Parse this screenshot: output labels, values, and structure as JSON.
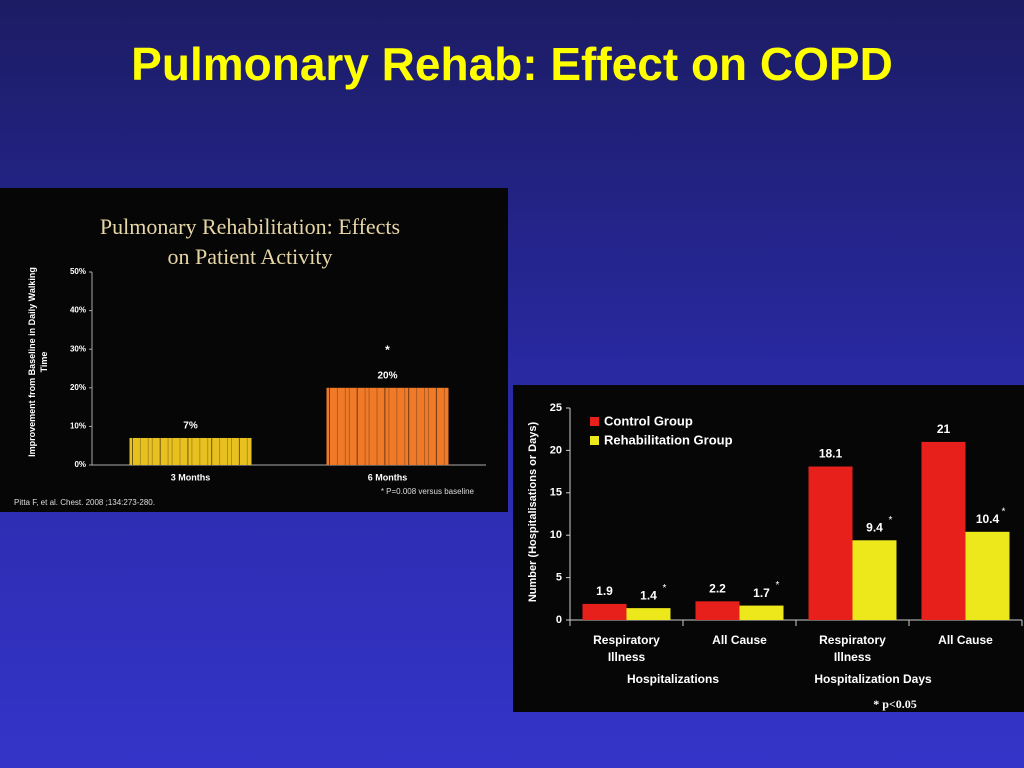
{
  "title": "Pulmonary Rehab: Effect on COPD",
  "chart_data": [
    {
      "type": "bar",
      "title": "Pulmonary Rehabilitation: Effects on Patient Activity",
      "y_label": "Improvement from Baseline in Daily Walking Time",
      "categories": [
        "3 Months",
        "6 Months"
      ],
      "values": [
        7,
        20
      ],
      "value_labels": [
        "7%",
        "20%"
      ],
      "colors": [
        "#e8c020",
        "#f07a28"
      ],
      "ylim": [
        0,
        50
      ],
      "yticks": [
        {
          "value": 0,
          "label": "0%"
        },
        {
          "value": 10,
          "label": "10%"
        },
        {
          "value": 20,
          "label": "20%"
        },
        {
          "value": 30,
          "label": "30%"
        },
        {
          "value": 40,
          "label": "40%"
        },
        {
          "value": 50,
          "label": "50%"
        }
      ],
      "annotation": "*",
      "note": "* P=0.008 versus baseline",
      "source": "Pitta F,  et al. Chest. 2008 ;134:273-280."
    },
    {
      "type": "grouped_bar",
      "y_label": "Number (Hospitalisations or Days)",
      "categories": [
        "Respiratory Illness",
        "All Cause",
        "Respiratory Illness",
        "All Cause"
      ],
      "groups": [
        "Hospitalizations",
        "Hospitalization Days"
      ],
      "series": [
        {
          "name": "Control Group",
          "color": "#e8201c",
          "values": [
            1.9,
            2.2,
            18.1,
            21
          ]
        },
        {
          "name": "Rehabilitation Group",
          "color": "#ece81c",
          "values": [
            1.4,
            1.7,
            9.4,
            10.4
          ],
          "flag": "*"
        }
      ],
      "ylim": [
        0,
        25
      ],
      "yticks": [
        0,
        5,
        10,
        15,
        20,
        25
      ],
      "legend": "top-left",
      "note": "* p<0.05"
    }
  ]
}
